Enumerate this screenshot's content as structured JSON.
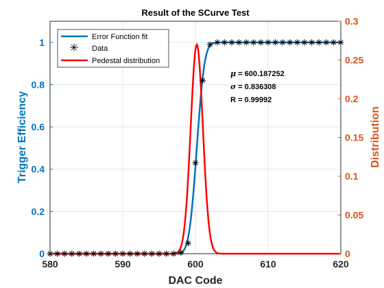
{
  "chart_data": {
    "type": "line",
    "title": "Result of the SCurve Test",
    "xlabel": "DAC Code",
    "ylabel_left": "Trigger Efficiency",
    "ylabel_right": "Distribution",
    "xlim": [
      580,
      620
    ],
    "ylim_left": [
      0,
      1.1
    ],
    "ylim_right": [
      0,
      0.3
    ],
    "x_ticks": [
      "580",
      "590",
      "600",
      "610",
      "620"
    ],
    "y_left_ticks": [
      "0",
      "0.2",
      "0.4",
      "0.6",
      "0.8",
      "1"
    ],
    "y_right_ticks": [
      "0",
      "0.05",
      "0.1",
      "0.15",
      "0.2",
      "0.25",
      "0.3"
    ],
    "grid": true,
    "legend_position": "top-left",
    "colors": {
      "left_axis": "#0072BD",
      "right_axis": "#D95319",
      "fit_line": "#0072BD",
      "data_marker": "#000000",
      "pedestal_line": "#FF0000",
      "grid": "#E6E6E6"
    },
    "series": [
      {
        "name": "Error Function fit",
        "axis": "left",
        "style": "line",
        "function": "erf",
        "mu": 600.187252,
        "sigma": 0.836308
      },
      {
        "name": "Data",
        "axis": "left",
        "style": "marker",
        "x": [
          580,
          581,
          582,
          583,
          584,
          585,
          586,
          587,
          588,
          589,
          590,
          591,
          592,
          593,
          594,
          595,
          596,
          597,
          598,
          599,
          600,
          601,
          602,
          603,
          604,
          605,
          606,
          607,
          608,
          609,
          610,
          611,
          612,
          613,
          614,
          615,
          616,
          617,
          618,
          619,
          620
        ],
        "y": [
          0,
          0,
          0,
          0,
          0,
          0,
          0,
          0,
          0,
          0,
          0,
          0,
          0,
          0,
          0,
          0,
          0,
          0,
          0.005,
          0.05,
          0.43,
          0.82,
          0.99,
          1,
          1,
          1,
          1,
          1,
          1,
          1,
          1,
          1,
          1,
          1,
          1,
          1,
          1,
          1,
          1,
          1,
          1
        ]
      },
      {
        "name": "Pedestal distribution",
        "axis": "right",
        "style": "line",
        "function": "gaussian",
        "mu": 600.187252,
        "sigma": 0.836308,
        "peak": 0.27
      }
    ],
    "annotations": [
      {
        "symbol": "μ",
        "text": " = 600.187252"
      },
      {
        "symbol": "σ",
        "text": " = 0.836308"
      },
      {
        "symbol": "R",
        "text": " = 0.99992"
      }
    ]
  }
}
